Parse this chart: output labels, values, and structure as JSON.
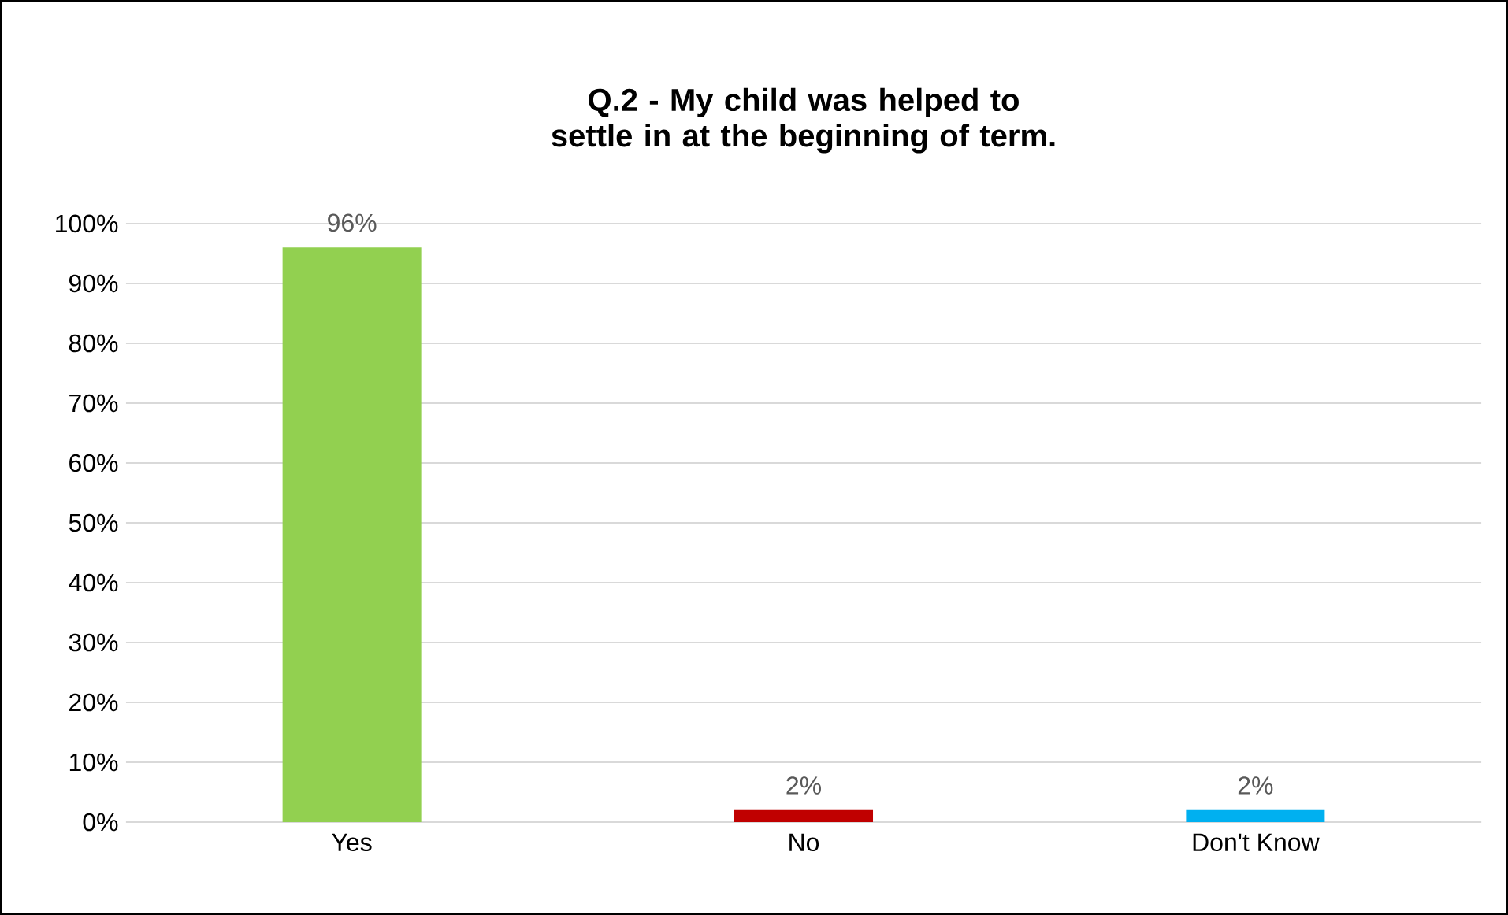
{
  "chart_data": {
    "type": "bar",
    "title": "Q.2 - My child was helped to settle in at the beginning of term.",
    "categories": [
      "Yes",
      "No",
      "Don't Know"
    ],
    "values": [
      96,
      2,
      2
    ],
    "colors": [
      "#92d050",
      "#c00000",
      "#00b0f0"
    ],
    "value_labels": [
      "96%",
      "2%",
      "2%"
    ],
    "ylim": [
      0,
      100
    ],
    "yticks": [
      {
        "value": 0,
        "label": "0%"
      },
      {
        "value": 10,
        "label": "10%"
      },
      {
        "value": 20,
        "label": "20%"
      },
      {
        "value": 30,
        "label": "30%"
      },
      {
        "value": 40,
        "label": "40%"
      },
      {
        "value": 50,
        "label": "50%"
      },
      {
        "value": 60,
        "label": "60%"
      },
      {
        "value": 70,
        "label": "70%"
      },
      {
        "value": 80,
        "label": "80%"
      },
      {
        "value": 90,
        "label": "90%"
      },
      {
        "value": 100,
        "label": "100%"
      }
    ],
    "grid": "y"
  }
}
